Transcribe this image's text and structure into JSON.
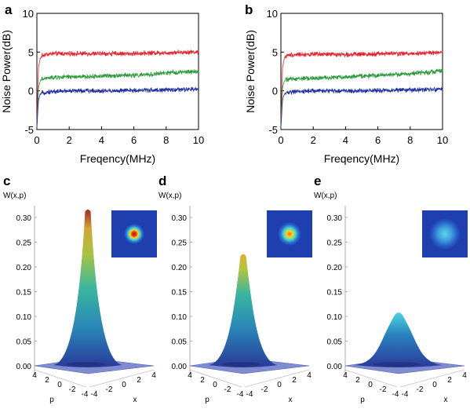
{
  "chart_data": [
    {
      "panel": "a",
      "type": "line",
      "xlabel": "Freqency(MHz)",
      "ylabel": "Noise Power(dB)",
      "xlim": [
        0,
        10
      ],
      "ylim": [
        -5,
        10
      ],
      "xticks": [
        0,
        2,
        4,
        6,
        8,
        10
      ],
      "yticks": [
        -5,
        0,
        5,
        10
      ],
      "series": [
        {
          "color": "#e8202a",
          "x": [
            0,
            0.1,
            0.2,
            0.3,
            0.5,
            1,
            2,
            3,
            4,
            5,
            6,
            7,
            8,
            9,
            10
          ],
          "values": [
            -4.2,
            3.0,
            4.1,
            4.5,
            4.7,
            4.8,
            4.8,
            4.8,
            4.8,
            4.8,
            4.8,
            4.9,
            4.9,
            5.0,
            5.0
          ]
        },
        {
          "color": "#2a9a3a",
          "x": [
            0,
            0.1,
            0.2,
            0.3,
            0.5,
            1,
            2,
            3,
            4,
            5,
            6,
            7,
            8,
            9,
            10
          ],
          "values": [
            -4.6,
            0.3,
            1.2,
            1.5,
            1.6,
            1.7,
            1.8,
            1.8,
            1.9,
            2.0,
            2.0,
            2.1,
            2.3,
            2.4,
            2.5
          ]
        },
        {
          "color": "#2030a0",
          "x": [
            0,
            0.1,
            0.2,
            0.3,
            0.5,
            1,
            2,
            3,
            4,
            5,
            6,
            7,
            8,
            9,
            10
          ],
          "values": [
            -4.9,
            -1.2,
            -0.5,
            -0.3,
            -0.2,
            -0.1,
            0.0,
            0.0,
            0.0,
            0.0,
            0.05,
            0.1,
            0.1,
            0.15,
            0.2
          ]
        }
      ]
    },
    {
      "panel": "b",
      "type": "line",
      "xlabel": "Freqency(MHz)",
      "ylabel": "Noise Power(dB)",
      "xlim": [
        0,
        10
      ],
      "ylim": [
        -5,
        10
      ],
      "xticks": [
        0,
        2,
        4,
        6,
        8,
        10
      ],
      "yticks": [
        -5,
        0,
        5,
        10
      ],
      "series": [
        {
          "color": "#e8202a",
          "x": [
            0,
            0.1,
            0.2,
            0.3,
            0.5,
            1,
            2,
            3,
            4,
            5,
            6,
            7,
            8,
            9,
            10
          ],
          "values": [
            -4.0,
            3.0,
            4.1,
            4.5,
            4.6,
            4.7,
            4.7,
            4.7,
            4.7,
            4.7,
            4.8,
            4.8,
            4.8,
            4.9,
            4.9
          ]
        },
        {
          "color": "#2a9a3a",
          "x": [
            0,
            0.1,
            0.2,
            0.3,
            0.5,
            1,
            2,
            3,
            4,
            5,
            6,
            7,
            8,
            9,
            10
          ],
          "values": [
            -4.6,
            0.4,
            1.2,
            1.4,
            1.5,
            1.6,
            1.6,
            1.7,
            1.8,
            1.9,
            2.0,
            2.1,
            2.2,
            2.4,
            2.6
          ]
        },
        {
          "color": "#2030a0",
          "x": [
            0,
            0.1,
            0.2,
            0.3,
            0.5,
            1,
            2,
            3,
            4,
            5,
            6,
            7,
            8,
            9,
            10
          ],
          "values": [
            -4.9,
            -1.2,
            -0.5,
            -0.3,
            -0.2,
            -0.1,
            0.0,
            0.0,
            0.0,
            0.0,
            0.05,
            0.1,
            0.1,
            0.15,
            0.2
          ]
        }
      ]
    },
    {
      "panel": "c",
      "type": "surface",
      "zlabel": "W(x,p)",
      "xlabel": "x",
      "plabel": "p",
      "zlim": [
        0,
        0.33
      ],
      "zticks": [
        "0.00",
        "0.05",
        "0.10",
        "0.15",
        "0.20",
        "0.25",
        "0.30"
      ],
      "xticks": [
        "-4",
        "-2",
        "0",
        "2",
        "4"
      ],
      "pticks": [
        "4",
        "2",
        "0",
        "-2",
        "-4"
      ],
      "peak": 0.315,
      "inset": "two-dimensional color map of W(x,p)"
    },
    {
      "panel": "d",
      "type": "surface",
      "zlabel": "W(x,p)",
      "xlabel": "x",
      "plabel": "p",
      "zlim": [
        0,
        0.33
      ],
      "zticks": [
        "0.00",
        "0.05",
        "0.10",
        "0.15",
        "0.20",
        "0.25",
        "0.30"
      ],
      "xticks": [
        "-4",
        "-2",
        "0",
        "2",
        "4"
      ],
      "pticks": [
        "4",
        "2",
        "0",
        "-2",
        "-4"
      ],
      "peak": 0.225,
      "inset": "two-dimensional color map of W(x,p)"
    },
    {
      "panel": "e",
      "type": "surface",
      "zlabel": "W(x,p)",
      "xlabel": "x",
      "plabel": "p",
      "zlim": [
        0,
        0.33
      ],
      "zticks": [
        "0.00",
        "0.05",
        "0.10",
        "0.15",
        "0.20",
        "0.25",
        "0.30"
      ],
      "xticks": [
        "-4",
        "-2",
        "0",
        "2",
        "4"
      ],
      "pticks": [
        "4",
        "2",
        "0",
        "-2",
        "-4"
      ],
      "peak": 0.107,
      "inset": "two-dimensional color map of W(x,p)"
    }
  ],
  "colors": {
    "red": "#e8202a",
    "green": "#2a9a3a",
    "blue": "#2030a0",
    "inset_bg": "#1f3fae"
  }
}
